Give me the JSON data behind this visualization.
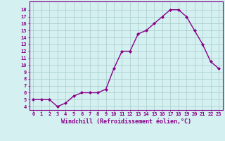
{
  "x": [
    0,
    1,
    2,
    3,
    4,
    5,
    6,
    7,
    8,
    9,
    10,
    11,
    12,
    13,
    14,
    15,
    16,
    17,
    18,
    19,
    20,
    21,
    22,
    23
  ],
  "y": [
    5.0,
    5.0,
    5.0,
    4.0,
    4.5,
    5.5,
    6.0,
    6.0,
    6.0,
    6.5,
    9.5,
    12.0,
    12.0,
    14.5,
    15.0,
    16.0,
    17.0,
    18.0,
    18.0,
    17.0,
    15.0,
    13.0,
    10.5,
    9.5
  ],
  "line_color": "#880088",
  "marker": "D",
  "marker_size": 2.0,
  "bg_color": "#d4f0f0",
  "grid_color": "#aacccc",
  "xlabel": "Windchill (Refroidissement éolien,°C)",
  "xlabel_color": "#880088",
  "xtick_labels": [
    "0",
    "1",
    "2",
    "3",
    "4",
    "5",
    "6",
    "7",
    "8",
    "9",
    "10",
    "11",
    "12",
    "13",
    "14",
    "15",
    "16",
    "17",
    "18",
    "19",
    "20",
    "21",
    "22",
    "23"
  ],
  "ytick_values": [
    4,
    5,
    6,
    7,
    8,
    9,
    10,
    11,
    12,
    13,
    14,
    15,
    16,
    17,
    18
  ],
  "ylim": [
    3.5,
    19.2
  ],
  "xlim": [
    -0.5,
    23.5
  ],
  "spine_color": "#880088",
  "tick_color": "#880088",
  "linewidth": 1.0,
  "xlabel_fontsize": 6.0,
  "tick_fontsize": 5.0
}
